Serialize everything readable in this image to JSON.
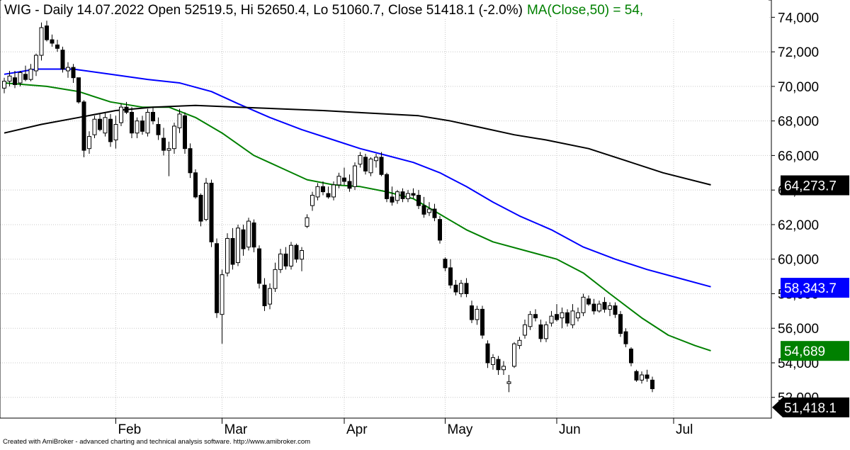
{
  "header": {
    "prefix": "WIG - Daily 14.07.2022 Open 52519.5, Hi 52650.4, Lo 51060.7, Close 51418.1 (-2.0%)",
    "ma_label": "MA(Close,50) = 54,",
    "ma_color": "#008000"
  },
  "footer": {
    "credit": "Created with AmiBroker - advanced charting and technical analysis software. http://www.amibroker.com"
  },
  "chart_data": {
    "type": "candlestick",
    "title": "WIG - Daily 14.07.2022",
    "ylim": [
      50800,
      75000
    ],
    "grid": true,
    "y_ticks": [
      52000,
      54000,
      56000,
      58000,
      60000,
      62000,
      64000,
      66000,
      68000,
      70000,
      72000,
      74000
    ],
    "y_tick_labels": [
      "52,000",
      "54,000",
      "56,000",
      "58,000",
      "60,000",
      "62,000",
      "64,000",
      "66,000",
      "68,000",
      "70,000",
      "72,000",
      "74,000"
    ],
    "month_labels": [
      {
        "label": "Feb",
        "index": 21
      },
      {
        "label": "Mar",
        "index": 41
      },
      {
        "label": "Apr",
        "index": 64
      },
      {
        "label": "May",
        "index": 83
      },
      {
        "label": "Jun",
        "index": 104
      },
      {
        "label": "Jul",
        "index": 126
      }
    ],
    "colors": {
      "up": "#ffffff",
      "down": "#000000",
      "wick": "#000000"
    },
    "last_values": [
      {
        "name": "MA200",
        "value": 64273.7,
        "label": "64,273.7",
        "bg": "#000000",
        "fg": "#ffffff"
      },
      {
        "name": "MA100",
        "value": 58343.7,
        "label": "58,343.7",
        "bg": "#0000ff",
        "fg": "#ffffff"
      },
      {
        "name": "MA(Close,50)",
        "value": 54689,
        "label": "54,689",
        "bg": "#008000",
        "fg": "#ffffff"
      },
      {
        "name": "Close",
        "value": 51418.1,
        "label": "51,418.1",
        "bg": "#000000",
        "fg": "#ffffff"
      }
    ],
    "candles": [
      {
        "o": 69900,
        "h": 70500,
        "l": 69600,
        "c": 70300
      },
      {
        "o": 70300,
        "h": 70900,
        "l": 70000,
        "c": 70600
      },
      {
        "o": 70500,
        "h": 70900,
        "l": 69900,
        "c": 70100
      },
      {
        "o": 70200,
        "h": 70900,
        "l": 70000,
        "c": 70800
      },
      {
        "o": 70700,
        "h": 71200,
        "l": 70300,
        "c": 70400
      },
      {
        "o": 70400,
        "h": 71300,
        "l": 70300,
        "c": 71000
      },
      {
        "o": 70900,
        "h": 71900,
        "l": 70600,
        "c": 71800
      },
      {
        "o": 71800,
        "h": 73700,
        "l": 71500,
        "c": 73400
      },
      {
        "o": 73500,
        "h": 73800,
        "l": 72600,
        "c": 72700
      },
      {
        "o": 72700,
        "h": 73000,
        "l": 72300,
        "c": 72500
      },
      {
        "o": 72400,
        "h": 72700,
        "l": 72000,
        "c": 72200
      },
      {
        "o": 72100,
        "h": 72300,
        "l": 70800,
        "c": 71000
      },
      {
        "o": 70900,
        "h": 71400,
        "l": 70500,
        "c": 71100
      },
      {
        "o": 71100,
        "h": 71300,
        "l": 70200,
        "c": 70500
      },
      {
        "o": 70500,
        "h": 70500,
        "l": 69000,
        "c": 69100
      },
      {
        "o": 69100,
        "h": 69200,
        "l": 65900,
        "c": 66300
      },
      {
        "o": 66400,
        "h": 67400,
        "l": 66100,
        "c": 67100
      },
      {
        "o": 67200,
        "h": 68300,
        "l": 67000,
        "c": 68100
      },
      {
        "o": 68100,
        "h": 68400,
        "l": 67400,
        "c": 67500
      },
      {
        "o": 67300,
        "h": 68500,
        "l": 67100,
        "c": 68200
      },
      {
        "o": 68100,
        "h": 68400,
        "l": 66500,
        "c": 66800
      },
      {
        "o": 66900,
        "h": 68300,
        "l": 66400,
        "c": 67800
      },
      {
        "o": 67900,
        "h": 69000,
        "l": 67700,
        "c": 68800
      },
      {
        "o": 68800,
        "h": 69100,
        "l": 68400,
        "c": 68500
      },
      {
        "o": 68500,
        "h": 68800,
        "l": 67000,
        "c": 67300
      },
      {
        "o": 67300,
        "h": 68200,
        "l": 67000,
        "c": 68000
      },
      {
        "o": 68000,
        "h": 68300,
        "l": 67200,
        "c": 67400
      },
      {
        "o": 67300,
        "h": 68700,
        "l": 67100,
        "c": 68500
      },
      {
        "o": 68500,
        "h": 68800,
        "l": 67800,
        "c": 68000
      },
      {
        "o": 67800,
        "h": 68200,
        "l": 66900,
        "c": 67200
      },
      {
        "o": 67000,
        "h": 67600,
        "l": 66000,
        "c": 66300
      },
      {
        "o": 66300,
        "h": 66800,
        "l": 64800,
        "c": 66400
      },
      {
        "o": 66400,
        "h": 67900,
        "l": 66100,
        "c": 67700
      },
      {
        "o": 67600,
        "h": 68700,
        "l": 67300,
        "c": 68400
      },
      {
        "o": 68300,
        "h": 68500,
        "l": 66100,
        "c": 66400
      },
      {
        "o": 66400,
        "h": 66700,
        "l": 64700,
        "c": 65000
      },
      {
        "o": 65000,
        "h": 65200,
        "l": 63500,
        "c": 63600
      },
      {
        "o": 63700,
        "h": 63800,
        "l": 61900,
        "c": 62200
      },
      {
        "o": 62300,
        "h": 64700,
        "l": 62200,
        "c": 64400
      },
      {
        "o": 64400,
        "h": 64600,
        "l": 60700,
        "c": 61000
      },
      {
        "o": 60900,
        "h": 61200,
        "l": 56600,
        "c": 56900
      },
      {
        "o": 56800,
        "h": 59400,
        "l": 55100,
        "c": 59100
      },
      {
        "o": 59200,
        "h": 61500,
        "l": 59000,
        "c": 61200
      },
      {
        "o": 61200,
        "h": 61800,
        "l": 59400,
        "c": 59700
      },
      {
        "o": 59800,
        "h": 62000,
        "l": 59600,
        "c": 61800
      },
      {
        "o": 61700,
        "h": 62000,
        "l": 60200,
        "c": 60600
      },
      {
        "o": 60700,
        "h": 62400,
        "l": 60500,
        "c": 62200
      },
      {
        "o": 62100,
        "h": 62300,
        "l": 60400,
        "c": 60700
      },
      {
        "o": 60600,
        "h": 60800,
        "l": 58300,
        "c": 58600
      },
      {
        "o": 58500,
        "h": 58900,
        "l": 57000,
        "c": 57300
      },
      {
        "o": 57400,
        "h": 58600,
        "l": 57100,
        "c": 58300
      },
      {
        "o": 58300,
        "h": 59800,
        "l": 58100,
        "c": 59400
      },
      {
        "o": 59400,
        "h": 60600,
        "l": 59200,
        "c": 60300
      },
      {
        "o": 60300,
        "h": 60700,
        "l": 59400,
        "c": 59600
      },
      {
        "o": 59600,
        "h": 61000,
        "l": 59400,
        "c": 60800
      },
      {
        "o": 60800,
        "h": 60900,
        "l": 59800,
        "c": 60000
      },
      {
        "o": 60000,
        "h": 60700,
        "l": 59300,
        "c": 60500
      },
      {
        "o": 61900,
        "h": 62600,
        "l": 61800,
        "c": 62400
      },
      {
        "o": 63100,
        "h": 63900,
        "l": 62800,
        "c": 63700
      },
      {
        "o": 63600,
        "h": 64400,
        "l": 63400,
        "c": 64200
      },
      {
        "o": 64200,
        "h": 64500,
        "l": 63700,
        "c": 63900
      },
      {
        "o": 63800,
        "h": 64200,
        "l": 63500,
        "c": 63600
      },
      {
        "o": 63600,
        "h": 64500,
        "l": 63400,
        "c": 64300
      },
      {
        "o": 64300,
        "h": 65000,
        "l": 64100,
        "c": 64800
      },
      {
        "o": 64700,
        "h": 65300,
        "l": 64300,
        "c": 64500
      },
      {
        "o": 64500,
        "h": 64900,
        "l": 63900,
        "c": 64100
      },
      {
        "o": 64200,
        "h": 65600,
        "l": 64000,
        "c": 65400
      },
      {
        "o": 65500,
        "h": 66200,
        "l": 65300,
        "c": 66000
      },
      {
        "o": 65900,
        "h": 66100,
        "l": 64900,
        "c": 65100
      },
      {
        "o": 65000,
        "h": 65900,
        "l": 64800,
        "c": 65800
      },
      {
        "o": 65700,
        "h": 66100,
        "l": 65300,
        "c": 65900
      },
      {
        "o": 65900,
        "h": 66200,
        "l": 64800,
        "c": 64900
      },
      {
        "o": 64900,
        "h": 65000,
        "l": 63300,
        "c": 63500
      },
      {
        "o": 63600,
        "h": 64200,
        "l": 63100,
        "c": 63300
      },
      {
        "o": 63400,
        "h": 64000,
        "l": 63200,
        "c": 63900
      },
      {
        "o": 63900,
        "h": 64100,
        "l": 63300,
        "c": 63500
      },
      {
        "o": 63500,
        "h": 64000,
        "l": 63300,
        "c": 63800
      },
      {
        "o": 63800,
        "h": 64100,
        "l": 63500,
        "c": 63700
      },
      {
        "o": 63700,
        "h": 64000,
        "l": 62900,
        "c": 63100
      },
      {
        "o": 63100,
        "h": 63600,
        "l": 62400,
        "c": 62600
      },
      {
        "o": 62700,
        "h": 63300,
        "l": 62500,
        "c": 62900
      },
      {
        "o": 62900,
        "h": 63200,
        "l": 62200,
        "c": 62400
      },
      {
        "o": 62300,
        "h": 62500,
        "l": 60900,
        "c": 61100
      },
      {
        "o": 60000,
        "h": 60100,
        "l": 59300,
        "c": 59500
      },
      {
        "o": 59500,
        "h": 60000,
        "l": 58300,
        "c": 58500
      },
      {
        "o": 58500,
        "h": 58800,
        "l": 57900,
        "c": 58100
      },
      {
        "o": 58000,
        "h": 58800,
        "l": 57800,
        "c": 58600
      },
      {
        "o": 58600,
        "h": 58900,
        "l": 57800,
        "c": 58000
      },
      {
        "o": 57300,
        "h": 57600,
        "l": 56300,
        "c": 56500
      },
      {
        "o": 56500,
        "h": 57300,
        "l": 56200,
        "c": 57100
      },
      {
        "o": 57100,
        "h": 57300,
        "l": 55400,
        "c": 55600
      },
      {
        "o": 55100,
        "h": 55300,
        "l": 53700,
        "c": 54000
      },
      {
        "o": 53900,
        "h": 54500,
        "l": 53600,
        "c": 54300
      },
      {
        "o": 54200,
        "h": 54400,
        "l": 53300,
        "c": 53600
      },
      {
        "o": 53600,
        "h": 54100,
        "l": 53300,
        "c": 53800
      },
      {
        "o": 52800,
        "h": 53300,
        "l": 52300,
        "c": 52900
      },
      {
        "o": 53800,
        "h": 55200,
        "l": 53700,
        "c": 55100
      },
      {
        "o": 55000,
        "h": 55500,
        "l": 54800,
        "c": 55300
      },
      {
        "o": 55600,
        "h": 56500,
        "l": 55400,
        "c": 56200
      },
      {
        "o": 56100,
        "h": 57000,
        "l": 55900,
        "c": 56800
      },
      {
        "o": 56800,
        "h": 57100,
        "l": 56400,
        "c": 56600
      },
      {
        "o": 56200,
        "h": 56500,
        "l": 55200,
        "c": 55400
      },
      {
        "o": 55400,
        "h": 56400,
        "l": 55200,
        "c": 56200
      },
      {
        "o": 56300,
        "h": 57000,
        "l": 56100,
        "c": 56700
      },
      {
        "o": 56800,
        "h": 57400,
        "l": 56400,
        "c": 56500
      },
      {
        "o": 56600,
        "h": 57200,
        "l": 56000,
        "c": 56900
      },
      {
        "o": 56900,
        "h": 57100,
        "l": 56100,
        "c": 56300
      },
      {
        "o": 56200,
        "h": 57400,
        "l": 56000,
        "c": 57000
      },
      {
        "o": 56600,
        "h": 57200,
        "l": 56400,
        "c": 56900
      },
      {
        "o": 56900,
        "h": 58000,
        "l": 56700,
        "c": 57800
      },
      {
        "o": 57700,
        "h": 57900,
        "l": 57300,
        "c": 57400
      },
      {
        "o": 57400,
        "h": 57700,
        "l": 56800,
        "c": 57000
      },
      {
        "o": 57000,
        "h": 57600,
        "l": 56900,
        "c": 57400
      },
      {
        "o": 57500,
        "h": 57800,
        "l": 56900,
        "c": 57100
      },
      {
        "o": 57100,
        "h": 57500,
        "l": 56700,
        "c": 57300
      },
      {
        "o": 57300,
        "h": 57500,
        "l": 56600,
        "c": 56800
      },
      {
        "o": 56800,
        "h": 57000,
        "l": 55500,
        "c": 55700
      },
      {
        "o": 55800,
        "h": 56000,
        "l": 54900,
        "c": 55100
      },
      {
        "o": 54800,
        "h": 54900,
        "l": 53800,
        "c": 54000
      },
      {
        "o": 53500,
        "h": 53600,
        "l": 52900,
        "c": 53000
      },
      {
        "o": 53000,
        "h": 53500,
        "l": 52800,
        "c": 53300
      },
      {
        "o": 53300,
        "h": 53600,
        "l": 52900,
        "c": 53100
      },
      {
        "o": 53000,
        "h": 53200,
        "l": 52300,
        "c": 52500
      }
    ],
    "moving_averages": [
      {
        "name": "MA(Close,50)",
        "period": 50,
        "color": "#008000",
        "points": [
          {
            "i": 0,
            "v": 70200
          },
          {
            "i": 8,
            "v": 70000
          },
          {
            "i": 14,
            "v": 69700
          },
          {
            "i": 20,
            "v": 69100
          },
          {
            "i": 26,
            "v": 68800
          },
          {
            "i": 31,
            "v": 68800
          },
          {
            "i": 36,
            "v": 68200
          },
          {
            "i": 41,
            "v": 67300
          },
          {
            "i": 47,
            "v": 66000
          },
          {
            "i": 52,
            "v": 65300
          },
          {
            "i": 57,
            "v": 64600
          },
          {
            "i": 62,
            "v": 64300
          },
          {
            "i": 67,
            "v": 64200
          },
          {
            "i": 72,
            "v": 63900
          },
          {
            "i": 77,
            "v": 63500
          },
          {
            "i": 82,
            "v": 62600
          },
          {
            "i": 87,
            "v": 61700
          },
          {
            "i": 92,
            "v": 61000
          },
          {
            "i": 98,
            "v": 60500
          },
          {
            "i": 104,
            "v": 60000
          },
          {
            "i": 109,
            "v": 59200
          },
          {
            "i": 114,
            "v": 58000
          },
          {
            "i": 120,
            "v": 56600
          },
          {
            "i": 125,
            "v": 55600
          },
          {
            "i": 130,
            "v": 55000
          },
          {
            "i": 133,
            "v": 54700
          }
        ]
      },
      {
        "name": "MA100",
        "period": 100,
        "color": "#0000ff",
        "points": [
          {
            "i": 0,
            "v": 70700
          },
          {
            "i": 6,
            "v": 71000
          },
          {
            "i": 13,
            "v": 71000
          },
          {
            "i": 20,
            "v": 70700
          },
          {
            "i": 27,
            "v": 70400
          },
          {
            "i": 33,
            "v": 70200
          },
          {
            "i": 39,
            "v": 69700
          },
          {
            "i": 44,
            "v": 69000
          },
          {
            "i": 50,
            "v": 68200
          },
          {
            "i": 56,
            "v": 67500
          },
          {
            "i": 62,
            "v": 66900
          },
          {
            "i": 67,
            "v": 66400
          },
          {
            "i": 72,
            "v": 66000
          },
          {
            "i": 77,
            "v": 65600
          },
          {
            "i": 82,
            "v": 65000
          },
          {
            "i": 87,
            "v": 64200
          },
          {
            "i": 92,
            "v": 63300
          },
          {
            "i": 97,
            "v": 62500
          },
          {
            "i": 103,
            "v": 61700
          },
          {
            "i": 109,
            "v": 60700
          },
          {
            "i": 115,
            "v": 60000
          },
          {
            "i": 121,
            "v": 59400
          },
          {
            "i": 127,
            "v": 58900
          },
          {
            "i": 133,
            "v": 58400
          }
        ]
      },
      {
        "name": "MA200",
        "period": 200,
        "color": "#000000",
        "points": [
          {
            "i": 0,
            "v": 67300
          },
          {
            "i": 7,
            "v": 67800
          },
          {
            "i": 14,
            "v": 68200
          },
          {
            "i": 21,
            "v": 68600
          },
          {
            "i": 28,
            "v": 68800
          },
          {
            "i": 36,
            "v": 68900
          },
          {
            "i": 44,
            "v": 68800
          },
          {
            "i": 52,
            "v": 68700
          },
          {
            "i": 60,
            "v": 68600
          },
          {
            "i": 66,
            "v": 68500
          },
          {
            "i": 72,
            "v": 68400
          },
          {
            "i": 78,
            "v": 68300
          },
          {
            "i": 84,
            "v": 68000
          },
          {
            "i": 90,
            "v": 67600
          },
          {
            "i": 96,
            "v": 67200
          },
          {
            "i": 102,
            "v": 66900
          },
          {
            "i": 110,
            "v": 66400
          },
          {
            "i": 117,
            "v": 65700
          },
          {
            "i": 124,
            "v": 65000
          },
          {
            "i": 133,
            "v": 64300
          }
        ]
      }
    ]
  }
}
